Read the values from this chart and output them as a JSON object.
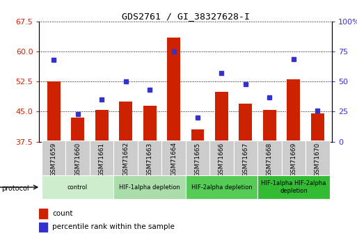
{
  "title": "GDS2761 / GI_38327628-I",
  "samples": [
    "GSM71659",
    "GSM71660",
    "GSM71661",
    "GSM71662",
    "GSM71663",
    "GSM71664",
    "GSM71665",
    "GSM71666",
    "GSM71667",
    "GSM71668",
    "GSM71669",
    "GSM71670"
  ],
  "count_values": [
    52.5,
    43.5,
    45.5,
    47.5,
    46.5,
    63.5,
    40.5,
    50.0,
    47.0,
    45.5,
    53.0,
    44.5
  ],
  "percentile_values": [
    68,
    23,
    35,
    50,
    43,
    75,
    20,
    57,
    48,
    37,
    69,
    26
  ],
  "ylim_left": [
    37.5,
    67.5
  ],
  "ylim_right": [
    0,
    100
  ],
  "yticks_left": [
    37.5,
    45.0,
    52.5,
    60.0,
    67.5
  ],
  "yticks_right": [
    0,
    25,
    50,
    75,
    100
  ],
  "bar_color": "#cc2200",
  "dot_color": "#3333cc",
  "grid_color": "#000000",
  "protocol_groups": [
    {
      "label": "control",
      "start": 0,
      "end": 2,
      "color": "#cceecc"
    },
    {
      "label": "HIF-1alpha depletion",
      "start": 3,
      "end": 5,
      "color": "#aaddaa"
    },
    {
      "label": "HIF-2alpha depletion",
      "start": 6,
      "end": 8,
      "color": "#55cc55"
    },
    {
      "label": "HIF-1alpha HIF-2alpha\ndepletion",
      "start": 9,
      "end": 11,
      "color": "#33bb33"
    }
  ],
  "tick_label_color_left": "#cc2200",
  "tick_label_color_right": "#3333cc",
  "legend_count_label": "count",
  "legend_pct_label": "percentile rank within the sample",
  "bar_width": 0.55,
  "xtick_bg": "#cccccc"
}
